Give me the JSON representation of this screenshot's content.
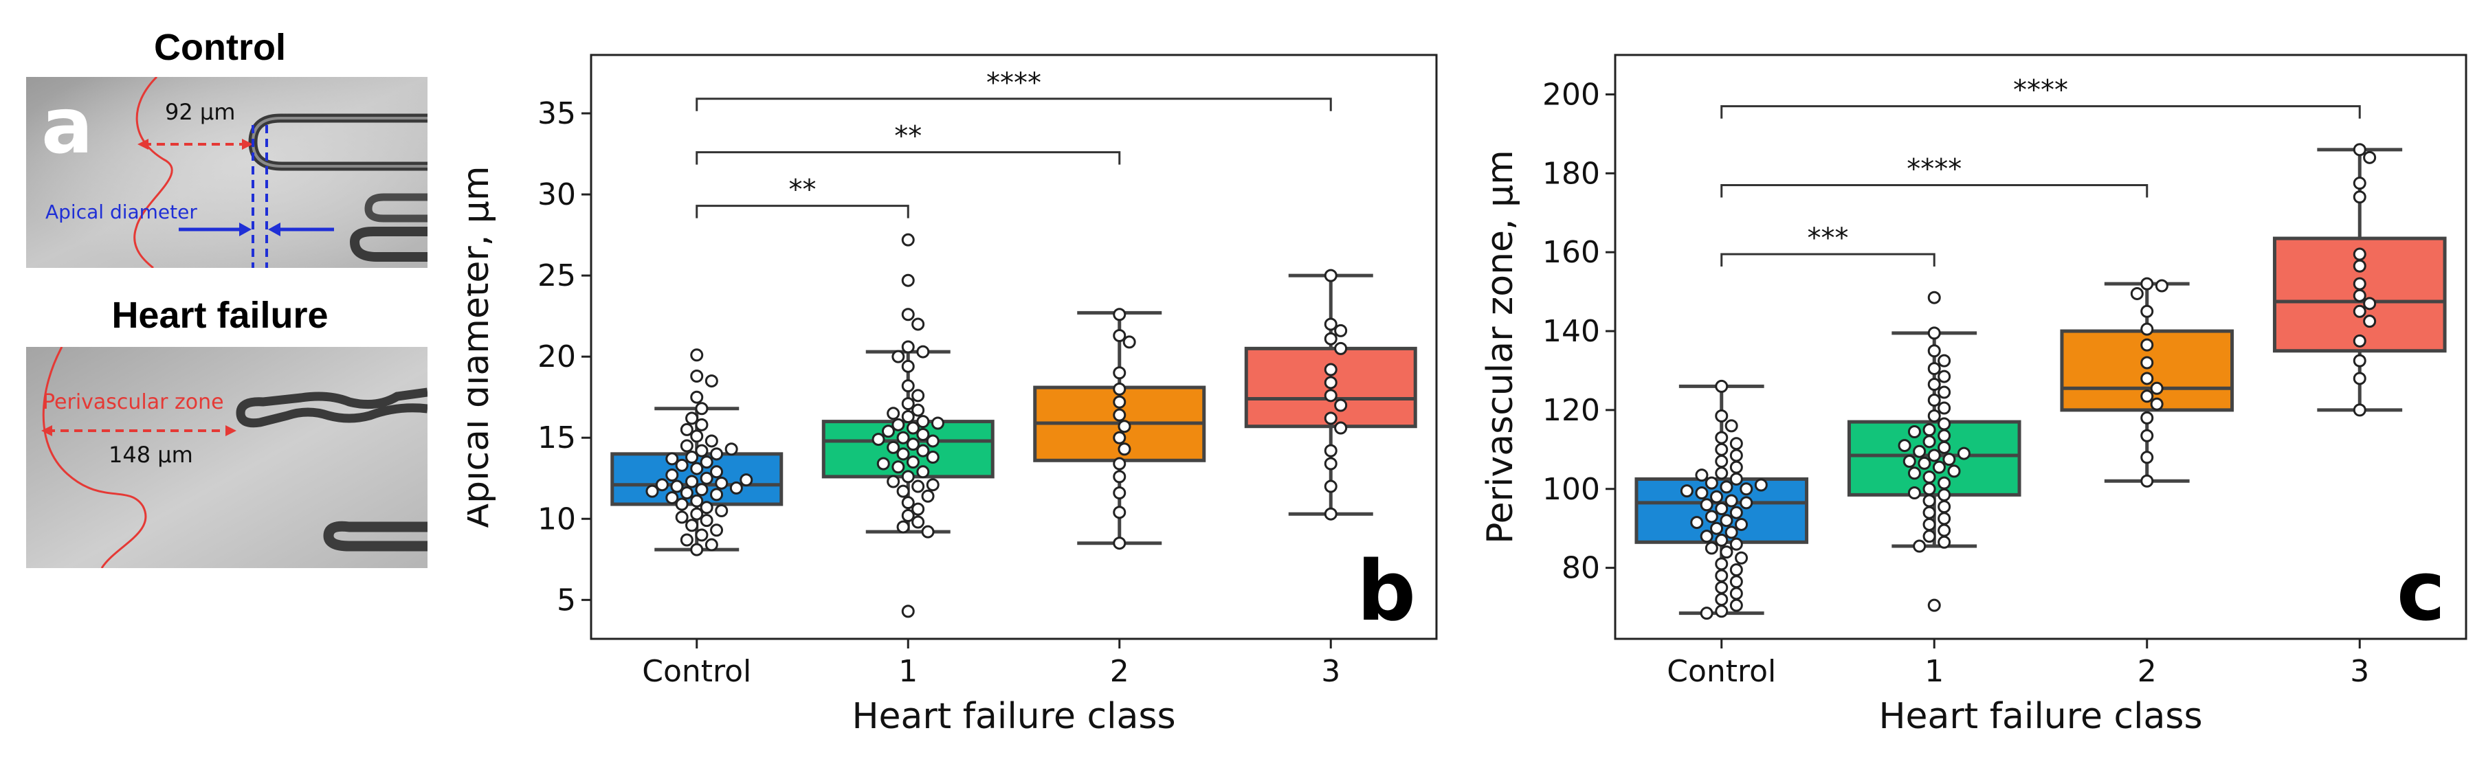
{
  "panel_a": {
    "label": "a",
    "control": {
      "title": "Control",
      "distance": "92 µm",
      "apical_label": "Apical diameter"
    },
    "heart_failure": {
      "title": "Heart failure",
      "zone_label": "Perivascular zone",
      "distance": "148 µm"
    },
    "colors": {
      "red": "#e53935",
      "blue": "#1f2fd6"
    }
  },
  "chart_data": [
    {
      "panel": "b",
      "type": "box",
      "categories": [
        "Control",
        "1",
        "2",
        "3"
      ],
      "colors": [
        "#1a88d6",
        "#12c47a",
        "#f08a10",
        "#f26b5b"
      ],
      "xlabel": "Heart failure class",
      "ylabel": "Apical diameter, µm",
      "ylim": [
        2.6,
        38.6
      ],
      "yticks": [
        5,
        10,
        15,
        20,
        25,
        30,
        35
      ],
      "boxes": [
        {
          "q1": 10.9,
          "median": 12.1,
          "q3": 14.0,
          "wmin": 8.1,
          "wmax": 16.8
        },
        {
          "q1": 12.6,
          "median": 14.8,
          "q3": 16.0,
          "wmin": 9.2,
          "wmax": 20.3
        },
        {
          "q1": 13.6,
          "median": 15.9,
          "q3": 18.1,
          "wmin": 8.5,
          "wmax": 22.7
        },
        {
          "q1": 15.7,
          "median": 17.4,
          "q3": 20.5,
          "wmin": 10.3,
          "wmax": 25.0
        }
      ],
      "points": [
        [
          20.1,
          18.8,
          18.5,
          17.5,
          16.8,
          16.2,
          15.8,
          15.5,
          15.1,
          14.8,
          14.5,
          14.2,
          14.0,
          13.8,
          13.5,
          13.3,
          13.1,
          12.9,
          12.7,
          12.5,
          12.3,
          12.2,
          12.1,
          12.0,
          11.9,
          11.8,
          11.6,
          11.5,
          11.3,
          11.1,
          10.9,
          10.7,
          10.5,
          10.3,
          10.1,
          9.9,
          9.6,
          9.3,
          9.0,
          8.7,
          8.4,
          8.1,
          12.4,
          13.7,
          14.3,
          11.7
        ],
        [
          27.2,
          24.7,
          22.6,
          22.0,
          20.6,
          20.3,
          20.0,
          19.4,
          18.2,
          17.6,
          17.1,
          16.7,
          16.3,
          16.0,
          15.8,
          15.6,
          15.4,
          15.2,
          15.0,
          14.8,
          14.6,
          14.4,
          14.2,
          14.0,
          13.8,
          13.5,
          13.2,
          12.9,
          12.6,
          12.3,
          12.0,
          11.7,
          11.4,
          11.0,
          10.6,
          10.2,
          9.8,
          9.5,
          9.2,
          4.3,
          15.9,
          14.9,
          13.4,
          16.5,
          12.1
        ],
        [
          22.6,
          21.3,
          20.9,
          19.0,
          18.0,
          17.2,
          16.4,
          15.7,
          15.0,
          14.3,
          13.4,
          12.6,
          11.6,
          10.4,
          8.5
        ],
        [
          25.0,
          22.0,
          21.6,
          21.1,
          20.5,
          19.2,
          18.4,
          17.6,
          17.0,
          16.2,
          15.6,
          14.2,
          13.4,
          12.0,
          10.3
        ]
      ],
      "significance": [
        {
          "from": 0,
          "to": 1,
          "label": "**",
          "y": 29.3
        },
        {
          "from": 0,
          "to": 2,
          "label": "**",
          "y": 32.6
        },
        {
          "from": 0,
          "to": 3,
          "label": "****",
          "y": 35.9
        }
      ],
      "corner_label": "b"
    },
    {
      "panel": "c",
      "type": "box",
      "categories": [
        "Control",
        "1",
        "2",
        "3"
      ],
      "colors": [
        "#1a88d6",
        "#12c47a",
        "#f08a10",
        "#f26b5b"
      ],
      "xlabel": "Heart failure class",
      "ylabel": "Perivascular zone, µm",
      "ylim": [
        62,
        210
      ],
      "yticks": [
        80,
        100,
        120,
        140,
        160,
        180,
        200
      ],
      "boxes": [
        {
          "q1": 86.5,
          "median": 96.5,
          "q3": 102.5,
          "wmin": 68.5,
          "wmax": 126.0
        },
        {
          "q1": 98.5,
          "median": 108.5,
          "q3": 117.0,
          "wmin": 85.5,
          "wmax": 139.5
        },
        {
          "q1": 120.0,
          "median": 125.5,
          "q3": 140.0,
          "wmin": 102.0,
          "wmax": 152.0
        },
        {
          "q1": 135.0,
          "median": 147.5,
          "q3": 163.5,
          "wmin": 120.0,
          "wmax": 186.0
        }
      ],
      "points": [
        [
          126.0,
          118.5,
          116.0,
          113.0,
          111.5,
          110.0,
          108.5,
          107.0,
          105.5,
          104.0,
          102.5,
          101.5,
          100.5,
          100.0,
          99.0,
          98.0,
          97.0,
          96.0,
          95.0,
          94.0,
          93.0,
          92.0,
          91.0,
          90.0,
          89.0,
          88.0,
          87.0,
          86.0,
          85.0,
          84.0,
          82.5,
          81.0,
          79.5,
          78.0,
          76.5,
          75.0,
          73.5,
          72.0,
          70.5,
          69.0,
          68.5,
          99.5,
          96.5,
          101.0,
          91.5,
          103.5
        ],
        [
          148.5,
          139.5,
          135.0,
          132.5,
          130.5,
          128.5,
          126.5,
          124.5,
          122.5,
          120.5,
          118.5,
          116.5,
          115.0,
          113.5,
          112.0,
          110.5,
          109.5,
          108.5,
          107.5,
          106.5,
          105.5,
          104.5,
          103.0,
          101.5,
          100.0,
          98.5,
          97.0,
          95.5,
          94.0,
          92.5,
          91.0,
          89.5,
          88.0,
          86.5,
          85.5,
          70.5,
          109.0,
          107.0,
          111.0,
          104.0,
          99.0,
          114.5
        ],
        [
          152.0,
          151.5,
          149.5,
          145.0,
          140.5,
          136.5,
          132.0,
          128.0,
          125.5,
          123.5,
          121.5,
          118.0,
          113.5,
          108.0,
          102.0
        ],
        [
          186.0,
          184.0,
          177.5,
          174.0,
          159.5,
          156.5,
          152.0,
          149.0,
          147.0,
          145.0,
          142.5,
          137.5,
          132.5,
          128.0,
          120.0
        ]
      ],
      "significance": [
        {
          "from": 0,
          "to": 1,
          "label": "***",
          "y": 159.5
        },
        {
          "from": 0,
          "to": 2,
          "label": "****",
          "y": 177.0
        },
        {
          "from": 0,
          "to": 3,
          "label": "****",
          "y": 197.0
        }
      ],
      "corner_label": "c"
    }
  ]
}
